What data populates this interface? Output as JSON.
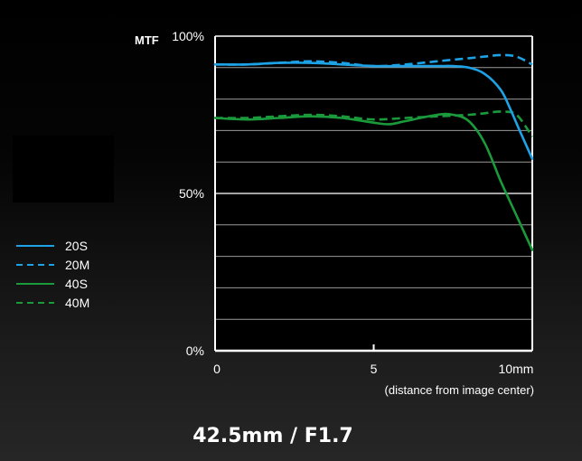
{
  "chart_data": {
    "type": "line",
    "title": "MTF",
    "xlabel": "(distance from image center)",
    "ylabel": "",
    "xlim": [
      0,
      10
    ],
    "ylim": [
      0,
      100
    ],
    "x_ticks": [
      0,
      5,
      10
    ],
    "x_tick_labels": [
      "0",
      "5",
      "10mm"
    ],
    "y_ticks": [
      0,
      50,
      100
    ],
    "y_tick_labels": [
      "0%",
      "50%",
      "100%"
    ],
    "grid": true,
    "legend_position": "left",
    "series": [
      {
        "name": "20S",
        "style": "solid",
        "color": "#1ea2e6",
        "x": [
          0,
          1,
          2,
          3,
          4,
          5,
          6,
          7,
          7.5,
          8,
          8.5,
          9,
          9.3,
          9.6,
          10
        ],
        "y": [
          91,
          91,
          91.5,
          91.5,
          91,
          90.5,
          90.5,
          90.5,
          90.5,
          90,
          88,
          83,
          77,
          70,
          61
        ]
      },
      {
        "name": "20M",
        "style": "dashed",
        "color": "#1ea2e6",
        "x": [
          0,
          1,
          2,
          3,
          4,
          5,
          6,
          7,
          8,
          8.5,
          9,
          9.5,
          10
        ],
        "y": [
          91,
          91,
          91.5,
          92,
          91.5,
          90.5,
          91,
          92,
          93,
          93.5,
          94,
          93.5,
          91
        ]
      },
      {
        "name": "40S",
        "style": "solid",
        "color": "#1b9a3c",
        "x": [
          0,
          1,
          2,
          3,
          4,
          5,
          5.5,
          6,
          7,
          7.5,
          8,
          8.5,
          9,
          9.5,
          10
        ],
        "y": [
          74,
          73.5,
          74,
          74.5,
          74,
          72.5,
          72,
          73,
          75,
          75,
          73,
          66,
          54,
          43,
          32
        ]
      },
      {
        "name": "40M",
        "style": "dashed",
        "color": "#1b9a3c",
        "x": [
          0,
          1,
          2,
          3,
          4,
          5,
          6,
          7,
          8,
          8.5,
          9,
          9.5,
          10
        ],
        "y": [
          74,
          74,
          74.5,
          75,
          74.5,
          73.5,
          74,
          74.5,
          75,
          75.5,
          76,
          75,
          68
        ]
      }
    ]
  },
  "caption": "42.5mm / F1.7"
}
